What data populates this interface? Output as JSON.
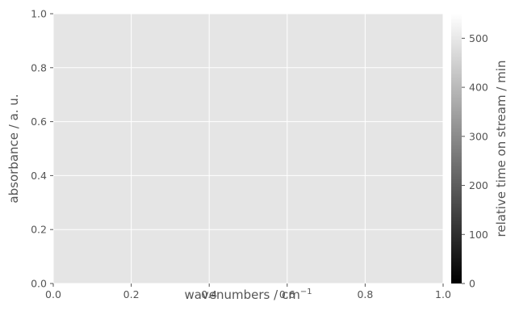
{
  "chart_data": {
    "type": "line",
    "title": "",
    "xlabel": "wavenumbers / cm",
    "xlabel_superscript": "−1",
    "ylabel": "absorbance / a. u.",
    "xlim": [
      0.0,
      1.0
    ],
    "ylim": [
      0.0,
      1.0
    ],
    "x_ticks": [
      0.0,
      0.2,
      0.4,
      0.6,
      0.8,
      1.0
    ],
    "x_tick_labels": [
      "0.0",
      "0.2",
      "0.4",
      "0.6",
      "0.8",
      "1.0"
    ],
    "y_ticks": [
      0.0,
      0.2,
      0.4,
      0.6,
      0.8,
      1.0
    ],
    "y_tick_labels": [
      "0.0",
      "0.2",
      "0.4",
      "0.6",
      "0.8",
      "1.0"
    ],
    "grid": true,
    "series": [],
    "colorbar": {
      "label": "relative time on stream / min",
      "range": [
        0,
        550
      ],
      "ticks": [
        0,
        100,
        200,
        300,
        400,
        500
      ],
      "tick_labels": [
        "0",
        "100",
        "200",
        "300",
        "400",
        "500"
      ],
      "colormap": "gray",
      "color_min": "#000000",
      "color_max": "#ffffff"
    },
    "colors": {
      "plot_background": "#e5e5e5",
      "grid": "#ffffff",
      "text": "#555555"
    }
  }
}
